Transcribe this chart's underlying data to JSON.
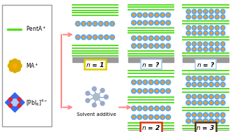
{
  "bg_color": "#ffffff",
  "blue": "#55aaee",
  "orange": "#ff9922",
  "green": "#55dd22",
  "gray": "#999999",
  "arrow_color": "#ff8888",
  "legend_ec": "#888888",
  "label_configs": [
    {
      "label": "n = 1",
      "ec": "#ddcc00",
      "lw": 1.8
    },
    {
      "label": "n = ?",
      "ec": "#aaccee",
      "lw": 1.2
    },
    {
      "label": "n = ?",
      "ec": "#aaccee",
      "lw": 1.2
    },
    {
      "label": "n = 2",
      "ec": "#dd3311",
      "lw": 1.8
    },
    {
      "label": "n = 3",
      "ec": "#553311",
      "lw": 1.8
    }
  ]
}
